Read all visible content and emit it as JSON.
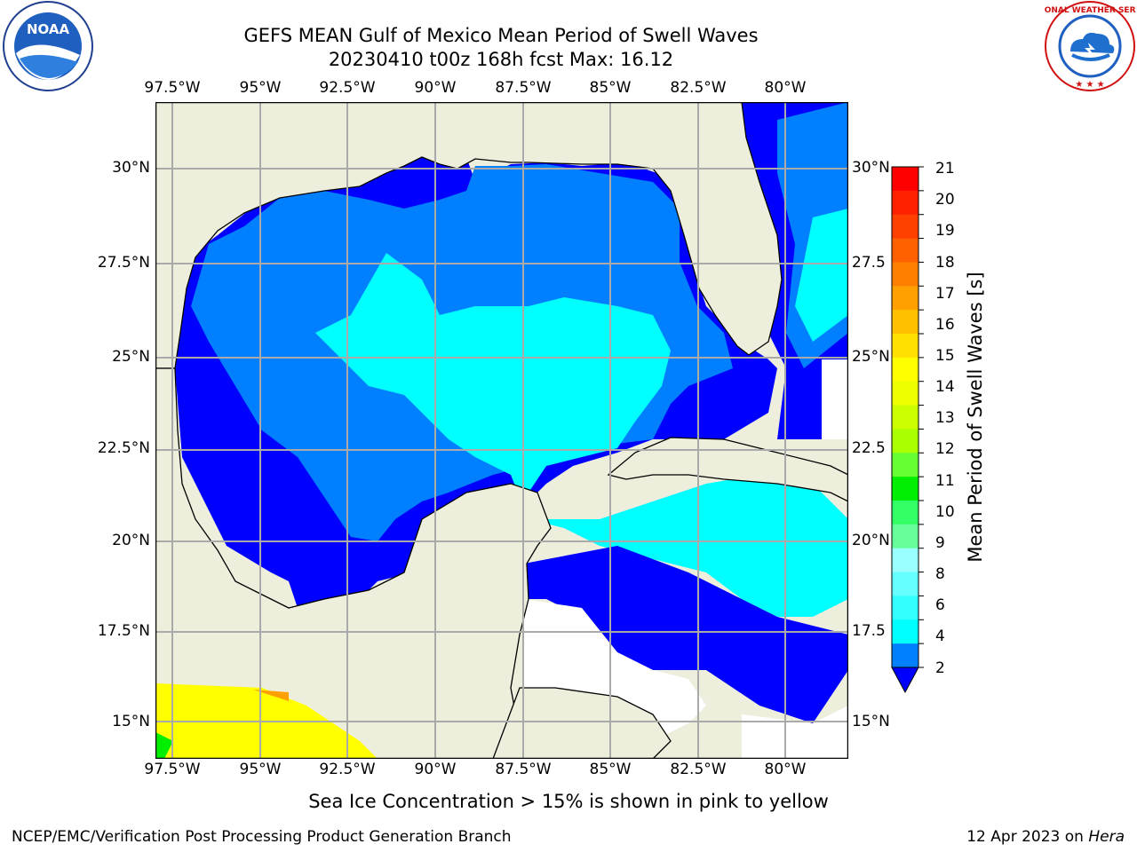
{
  "header": {
    "title_line1": "GEFS MEAN Gulf of Mexico Mean Period of Swell Waves",
    "title_line2": "20230410 t00z 168h fcst   Max: 16.12"
  },
  "map": {
    "top_lon_labels": [
      "97.5°W",
      "95°W",
      "92.5°W",
      "90°W",
      "87.5°W",
      "85°W",
      "82.5°W",
      "80°W"
    ],
    "bottom_lon_labels": [
      "97.5°W",
      "95°W",
      "92.5°W",
      "90°W",
      "87.5°W",
      "85°W",
      "82.5°W",
      "80°W"
    ],
    "left_lat_labels": [
      "30°N",
      "27.5°N",
      "25°N",
      "22.5°N",
      "20°N",
      "17.5°N",
      "15°N"
    ],
    "right_lat_labels": [
      "30°N",
      "27.5",
      "25°N",
      "22.5",
      "20°N",
      "17.5",
      "15°N"
    ],
    "colors": {
      "land": "#eeeedc",
      "level_2_4": "#0000ff",
      "level_4_6": "#0080ff",
      "level_6_8": "#00ffff",
      "high_zone": "#ffff00",
      "grid": "#aaaaaa"
    }
  },
  "colorbar": {
    "label": "Mean Period of Swell Waves [s]",
    "ticks": [
      "21",
      "20",
      "19",
      "18",
      "17",
      "16",
      "15",
      "14",
      "13",
      "12",
      "11",
      "10",
      "9",
      "8",
      "6",
      "4",
      "2"
    ],
    "colors_top_to_bottom": [
      "#ff0000",
      "#ff2000",
      "#ff4000",
      "#ff6000",
      "#ff8000",
      "#ffa000",
      "#ffc000",
      "#ffe000",
      "#ffff00",
      "#eeff00",
      "#ccff00",
      "#aaff00",
      "#66ff33",
      "#00ee00",
      "#33ff66",
      "#66ff99",
      "#99ffff",
      "#66ffff",
      "#33ffff",
      "#00ffff",
      "#0080ff"
    ],
    "extend_color": "#0000ff"
  },
  "note": "Sea Ice Concentration > 15% is shown in pink to yellow",
  "footer": {
    "left": "NCEP/EMC/Verification Post Processing Product Generation Branch",
    "right_date": "12 Apr 2023 on",
    "right_host": "Hera"
  },
  "logos": {
    "noaa_text": "NOAA",
    "nws_text": "NATIONAL WEATHER SERVICE"
  }
}
